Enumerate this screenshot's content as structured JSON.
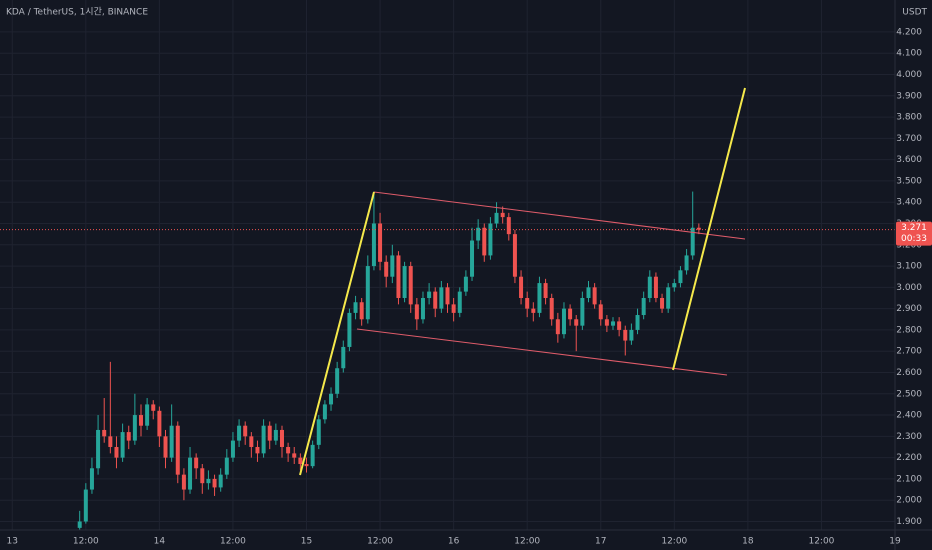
{
  "chart_data": {
    "type": "candlestick",
    "title": "KDA / TetherUS, 1시간, BINANCE",
    "currency": "USDT",
    "up_color": "#26a69a",
    "down_color": "#ef5350",
    "grid": true,
    "xlim": [
      -2,
      144
    ],
    "ylim": [
      1.86,
      4.35
    ],
    "xticks": [
      {
        "value": 0,
        "label": "13"
      },
      {
        "value": 12,
        "label": "12:00"
      },
      {
        "value": 24,
        "label": "14"
      },
      {
        "value": 36,
        "label": "12:00"
      },
      {
        "value": 48,
        "label": "15"
      },
      {
        "value": 60,
        "label": "12:00"
      },
      {
        "value": 72,
        "label": "16"
      },
      {
        "value": 84,
        "label": "12:00"
      },
      {
        "value": 96,
        "label": "17"
      },
      {
        "value": 108,
        "label": "12:00"
      },
      {
        "value": 120,
        "label": "18"
      },
      {
        "value": 132,
        "label": "12:00"
      },
      {
        "value": 144,
        "label": "19"
      }
    ],
    "yticks": [
      {
        "value": 1.9,
        "label": "1.900"
      },
      {
        "value": 2.0,
        "label": "2.000"
      },
      {
        "value": 2.1,
        "label": "2.100"
      },
      {
        "value": 2.2,
        "label": "2.200"
      },
      {
        "value": 2.3,
        "label": "2.300"
      },
      {
        "value": 2.4,
        "label": "2.400"
      },
      {
        "value": 2.5,
        "label": "2.500"
      },
      {
        "value": 2.6,
        "label": "2.600"
      },
      {
        "value": 2.7,
        "label": "2.700"
      },
      {
        "value": 2.8,
        "label": "2.800"
      },
      {
        "value": 2.9,
        "label": "2.900"
      },
      {
        "value": 3.0,
        "label": "3.000"
      },
      {
        "value": 3.1,
        "label": "3.100"
      },
      {
        "value": 3.2,
        "label": "3.200"
      },
      {
        "value": 3.3,
        "label": "3.300"
      },
      {
        "value": 3.4,
        "label": "3.400"
      },
      {
        "value": 3.5,
        "label": "3.500"
      },
      {
        "value": 3.6,
        "label": "3.600"
      },
      {
        "value": 3.7,
        "label": "3.700"
      },
      {
        "value": 3.8,
        "label": "3.800"
      },
      {
        "value": 3.9,
        "label": "3.900"
      },
      {
        "value": 4.0,
        "label": "4.000"
      },
      {
        "value": 4.1,
        "label": "4.100"
      },
      {
        "value": 4.2,
        "label": "4.200"
      }
    ],
    "last_price": 3.271,
    "countdown": "00:33",
    "x": [
      11,
      12,
      13,
      14,
      15,
      16,
      17,
      18,
      19,
      20,
      21,
      22,
      23,
      24,
      25,
      26,
      27,
      28,
      29,
      30,
      31,
      32,
      33,
      34,
      35,
      36,
      37,
      38,
      39,
      40,
      41,
      42,
      43,
      44,
      45,
      46,
      47,
      48,
      49,
      50,
      51,
      52,
      53,
      54,
      55,
      56,
      57,
      58,
      59,
      60,
      61,
      62,
      63,
      64,
      65,
      66,
      67,
      68,
      69,
      70,
      71,
      72,
      73,
      74,
      75,
      76,
      77,
      78,
      79,
      80,
      81,
      82,
      83,
      84,
      85,
      86,
      87,
      88,
      89,
      90,
      91,
      92,
      93,
      94,
      95,
      96,
      97,
      98,
      99,
      100,
      101,
      102,
      103,
      104,
      105,
      106,
      107,
      108,
      109,
      110,
      111,
      112
    ],
    "ohlc": [
      [
        1.87,
        1.95,
        1.86,
        1.9
      ],
      [
        1.9,
        2.08,
        1.89,
        2.05
      ],
      [
        2.05,
        2.2,
        2.03,
        2.15
      ],
      [
        2.15,
        2.4,
        2.12,
        2.33
      ],
      [
        2.33,
        2.48,
        2.27,
        2.3
      ],
      [
        2.3,
        2.65,
        2.22,
        2.25
      ],
      [
        2.25,
        2.3,
        2.15,
        2.2
      ],
      [
        2.2,
        2.36,
        2.18,
        2.32
      ],
      [
        2.32,
        2.35,
        2.24,
        2.28
      ],
      [
        2.28,
        2.5,
        2.26,
        2.4
      ],
      [
        2.4,
        2.45,
        2.3,
        2.35
      ],
      [
        2.35,
        2.48,
        2.33,
        2.45
      ],
      [
        2.45,
        2.47,
        2.38,
        2.42
      ],
      [
        2.42,
        2.44,
        2.25,
        2.3
      ],
      [
        2.3,
        2.33,
        2.15,
        2.2
      ],
      [
        2.2,
        2.45,
        2.18,
        2.35
      ],
      [
        2.35,
        2.37,
        2.08,
        2.12
      ],
      [
        2.12,
        2.15,
        2.0,
        2.05
      ],
      [
        2.05,
        2.25,
        2.03,
        2.2
      ],
      [
        2.2,
        2.22,
        2.1,
        2.15
      ],
      [
        2.15,
        2.17,
        2.03,
        2.08
      ],
      [
        2.08,
        2.14,
        2.05,
        2.1
      ],
      [
        2.1,
        2.12,
        2.02,
        2.06
      ],
      [
        2.06,
        2.15,
        2.04,
        2.12
      ],
      [
        2.12,
        2.24,
        2.1,
        2.2
      ],
      [
        2.2,
        2.32,
        2.18,
        2.28
      ],
      [
        2.28,
        2.38,
        2.25,
        2.35
      ],
      [
        2.35,
        2.37,
        2.26,
        2.3
      ],
      [
        2.3,
        2.32,
        2.2,
        2.25
      ],
      [
        2.25,
        2.28,
        2.18,
        2.22
      ],
      [
        2.22,
        2.38,
        2.2,
        2.35
      ],
      [
        2.35,
        2.37,
        2.24,
        2.28
      ],
      [
        2.28,
        2.36,
        2.26,
        2.33
      ],
      [
        2.33,
        2.35,
        2.2,
        2.25
      ],
      [
        2.25,
        2.27,
        2.18,
        2.22
      ],
      [
        2.22,
        2.25,
        2.17,
        2.2
      ],
      [
        2.2,
        2.22,
        2.14,
        2.17
      ],
      [
        2.17,
        2.2,
        2.13,
        2.16
      ],
      [
        2.16,
        2.28,
        2.15,
        2.26
      ],
      [
        2.26,
        2.4,
        2.24,
        2.38
      ],
      [
        2.38,
        2.47,
        2.36,
        2.45
      ],
      [
        2.45,
        2.53,
        2.42,
        2.5
      ],
      [
        2.5,
        2.65,
        2.48,
        2.62
      ],
      [
        2.62,
        2.75,
        2.6,
        2.72
      ],
      [
        2.72,
        2.9,
        2.7,
        2.88
      ],
      [
        2.88,
        2.96,
        2.85,
        2.93
      ],
      [
        2.93,
        2.95,
        2.82,
        2.85
      ],
      [
        2.85,
        3.15,
        2.83,
        3.1
      ],
      [
        3.1,
        3.45,
        3.08,
        3.3
      ],
      [
        3.3,
        3.35,
        3.08,
        3.12
      ],
      [
        3.12,
        3.15,
        3.0,
        3.05
      ],
      [
        3.05,
        3.2,
        3.02,
        3.15
      ],
      [
        3.15,
        3.17,
        2.92,
        2.95
      ],
      [
        2.95,
        3.12,
        2.93,
        3.1
      ],
      [
        3.1,
        3.12,
        2.88,
        2.92
      ],
      [
        2.92,
        2.95,
        2.8,
        2.85
      ],
      [
        2.85,
        2.98,
        2.83,
        2.95
      ],
      [
        2.95,
        3.02,
        2.92,
        2.98
      ],
      [
        2.98,
        3.0,
        2.86,
        2.9
      ],
      [
        2.9,
        3.03,
        2.88,
        3.0
      ],
      [
        3.0,
        3.02,
        2.88,
        2.92
      ],
      [
        2.92,
        2.95,
        2.84,
        2.88
      ],
      [
        2.88,
        3.0,
        2.86,
        2.98
      ],
      [
        2.98,
        3.08,
        2.96,
        3.05
      ],
      [
        3.05,
        3.28,
        3.03,
        3.22
      ],
      [
        3.22,
        3.32,
        3.18,
        3.28
      ],
      [
        3.28,
        3.3,
        3.12,
        3.15
      ],
      [
        3.15,
        3.33,
        3.13,
        3.3
      ],
      [
        3.3,
        3.4,
        3.28,
        3.35
      ],
      [
        3.35,
        3.38,
        3.3,
        3.33
      ],
      [
        3.33,
        3.35,
        3.22,
        3.25
      ],
      [
        3.25,
        3.27,
        3.02,
        3.05
      ],
      [
        3.05,
        3.08,
        2.92,
        2.95
      ],
      [
        2.95,
        2.98,
        2.86,
        2.9
      ],
      [
        2.9,
        2.93,
        2.84,
        2.88
      ],
      [
        2.88,
        3.05,
        2.86,
        3.02
      ],
      [
        3.02,
        3.04,
        2.92,
        2.95
      ],
      [
        2.95,
        2.97,
        2.82,
        2.85
      ],
      [
        2.85,
        2.88,
        2.74,
        2.78
      ],
      [
        2.78,
        2.93,
        2.76,
        2.9
      ],
      [
        2.9,
        2.92,
        2.82,
        2.85
      ],
      [
        2.85,
        2.87,
        2.7,
        2.82
      ],
      [
        2.82,
        2.98,
        2.8,
        2.95
      ],
      [
        2.95,
        3.03,
        2.93,
        3.0
      ],
      [
        3.0,
        3.02,
        2.9,
        2.92
      ],
      [
        2.92,
        2.94,
        2.82,
        2.85
      ],
      [
        2.85,
        2.87,
        2.79,
        2.82
      ],
      [
        2.82,
        2.86,
        2.8,
        2.84
      ],
      [
        2.84,
        2.86,
        2.77,
        2.8
      ],
      [
        2.8,
        2.82,
        2.68,
        2.75
      ],
      [
        2.75,
        2.83,
        2.73,
        2.8
      ],
      [
        2.8,
        2.9,
        2.78,
        2.87
      ],
      [
        2.87,
        2.98,
        2.85,
        2.95
      ],
      [
        2.95,
        3.08,
        2.93,
        3.05
      ],
      [
        3.05,
        3.07,
        2.93,
        2.95
      ],
      [
        2.95,
        2.97,
        2.88,
        2.9
      ],
      [
        2.9,
        3.02,
        2.88,
        3.0
      ],
      [
        3.0,
        3.04,
        2.98,
        3.02
      ],
      [
        3.02,
        3.1,
        3.0,
        3.08
      ],
      [
        3.08,
        3.18,
        3.06,
        3.15
      ],
      [
        3.15,
        3.45,
        3.13,
        3.28
      ],
      [
        3.28,
        3.3,
        3.25,
        3.271
      ]
    ]
  }
}
